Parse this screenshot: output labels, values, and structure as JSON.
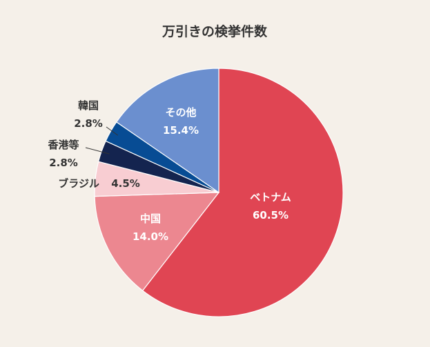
{
  "chart_data": {
    "type": "pie",
    "title": "万引きの検挙件数",
    "slices": [
      {
        "label": "ベトナム",
        "value": 60.5,
        "display": "60.5%",
        "color": "#e04553"
      },
      {
        "label": "中国",
        "value": 14.0,
        "display": "14.0%",
        "color": "#ec8790"
      },
      {
        "label": "ブラジル",
        "value": 4.5,
        "display": "4.5%",
        "color": "#f8cdd2"
      },
      {
        "label": "香港等",
        "value": 2.8,
        "display": "2.8%",
        "color": "#14244f"
      },
      {
        "label": "韓国",
        "value": 2.8,
        "display": "2.8%",
        "color": "#074c94"
      },
      {
        "label": "その他",
        "value": 15.4,
        "display": "15.4%",
        "color": "#6b8fcf"
      }
    ]
  }
}
